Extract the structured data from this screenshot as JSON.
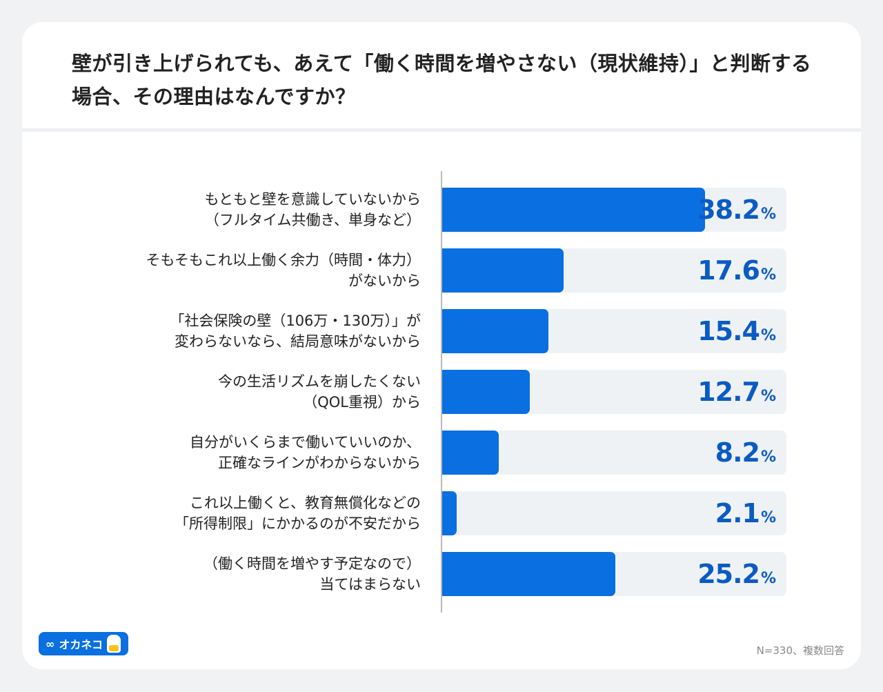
{
  "chart_data": {
    "type": "bar",
    "orientation": "horizontal",
    "title": "壁が引き上げられても、あえて「働く時間を増やさない（現状維持）」と判断する場合、その理由はなんですか？",
    "categories": [
      [
        "もともと壁を意識していないから",
        "（フルタイム共働き、単身など）"
      ],
      [
        "そもそもこれ以上働く余力（時間・体力）",
        "がないから"
      ],
      [
        "「社会保険の壁（106万・130万）」が",
        "変わらないなら、結局意味がないから"
      ],
      [
        "今の生活リズムを崩したくない",
        "（QOL重視）から"
      ],
      [
        "自分がいくらまで働いていいのか、",
        "正確なラインがわからないから"
      ],
      [
        "これ以上働くと、教育無償化などの",
        "「所得制限」にかかるのが不安だから"
      ],
      [
        "（働く時間を増やす予定なので）",
        "当てはまらない"
      ]
    ],
    "values": [
      38.2,
      17.6,
      15.4,
      12.7,
      8.2,
      2.1,
      25.2
    ],
    "value_suffix": "%",
    "xlim": [
      0,
      50
    ],
    "grid": false,
    "colors": {
      "bar": "#0a6fe0",
      "track": "#eff2f5",
      "value_text": "#0b5bc4"
    },
    "note": "N=330、複数回答"
  },
  "logo": {
    "text": "オカネコ",
    "icon": "infinity-icon"
  }
}
